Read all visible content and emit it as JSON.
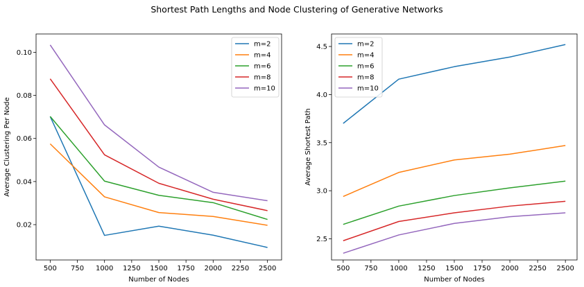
{
  "title": "Shortest Path Lengths and Node Clustering of Generative Networks",
  "colors": {
    "m=2": "#1f77b4",
    "m=4": "#ff7f0e",
    "m=6": "#2ca02c",
    "m=8": "#d62728",
    "m=10": "#9467bd"
  },
  "chart_data": [
    {
      "type": "line",
      "xlabel": "Number of Nodes",
      "ylabel": "Average Clustering Per Node",
      "x": [
        500,
        1000,
        1500,
        2000,
        2500
      ],
      "xlim": [
        370,
        2630
      ],
      "ylim": [
        0.0036,
        0.1085
      ],
      "xticks": [
        500,
        750,
        1000,
        1250,
        1500,
        1750,
        2000,
        2250,
        2500
      ],
      "yticks": [
        0.02,
        0.04,
        0.06,
        0.08,
        0.1
      ],
      "ytick_labels": [
        "0.02",
        "0.04",
        "0.06",
        "0.08",
        "0.10"
      ],
      "legend": "top-right",
      "grid": false,
      "series": [
        {
          "name": "m=2",
          "values": [
            0.0702,
            0.015,
            0.0193,
            0.0151,
            0.0094
          ]
        },
        {
          "name": "m=4",
          "values": [
            0.0575,
            0.0329,
            0.0256,
            0.0238,
            0.0197
          ]
        },
        {
          "name": "m=6",
          "values": [
            0.0702,
            0.0402,
            0.0336,
            0.0302,
            0.0224
          ]
        },
        {
          "name": "m=8",
          "values": [
            0.0877,
            0.0524,
            0.0392,
            0.0318,
            0.0265
          ]
        },
        {
          "name": "m=10",
          "values": [
            0.1034,
            0.0663,
            0.0467,
            0.035,
            0.0311
          ]
        }
      ]
    },
    {
      "type": "line",
      "xlabel": "Number of Nodes",
      "ylabel": "Average Shortest Path",
      "x": [
        500,
        1000,
        1500,
        2000,
        2500
      ],
      "xlim": [
        395,
        2605
      ],
      "ylim": [
        2.28,
        4.63
      ],
      "xticks": [
        500,
        750,
        1000,
        1250,
        1500,
        1750,
        2000,
        2250,
        2500
      ],
      "yticks": [
        2.5,
        3.0,
        3.5,
        4.0,
        4.5
      ],
      "ytick_labels": [
        "2.5",
        "3.0",
        "3.5",
        "4.0",
        "4.5"
      ],
      "legend": "top-left",
      "grid": false,
      "series": [
        {
          "name": "m=2",
          "values": [
            3.7,
            4.16,
            4.29,
            4.39,
            4.52
          ]
        },
        {
          "name": "m=4",
          "values": [
            2.94,
            3.19,
            3.32,
            3.38,
            3.47
          ]
        },
        {
          "name": "m=6",
          "values": [
            2.65,
            2.84,
            2.95,
            3.03,
            3.1
          ]
        },
        {
          "name": "m=8",
          "values": [
            2.48,
            2.68,
            2.77,
            2.84,
            2.89
          ]
        },
        {
          "name": "m=10",
          "values": [
            2.35,
            2.54,
            2.66,
            2.73,
            2.77
          ]
        }
      ]
    }
  ]
}
